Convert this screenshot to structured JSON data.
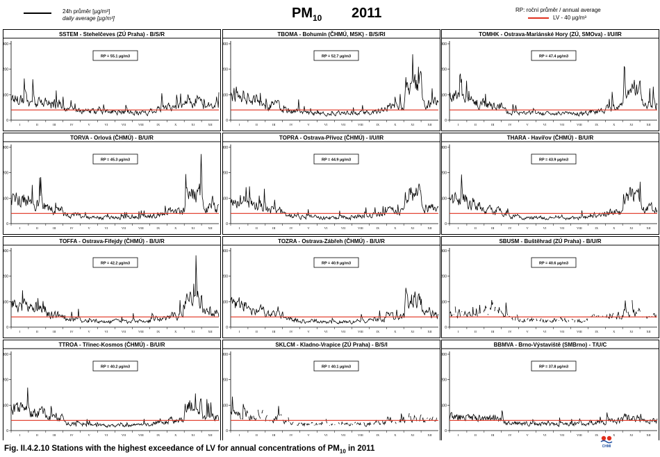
{
  "header": {
    "legend_daily_line1": "24h průměr [µg/m³]",
    "legend_daily_line2": "daily average [µg/m³]",
    "title_main": "PM",
    "title_sub": "10",
    "year": "2011",
    "legend_annual": "RP: roční průměr / annual average",
    "legend_lv": "LV - 40 µg/m³"
  },
  "caption": {
    "text_before": "Fig. II.4.2.10  Stations with the highest exceedance of LV for annual concentrations of PM",
    "sub": "10",
    "text_after": " in 2011"
  },
  "logo_text": "CHMI",
  "colors": {
    "daily_line": "#000000",
    "limit_line": "#e0301e",
    "frame": "#000000"
  },
  "month_labels": [
    "I",
    "II",
    "III",
    "IV",
    "V",
    "VI",
    "VII",
    "VIII",
    "IX",
    "X",
    "XI",
    "XII"
  ],
  "chart_data": [
    {
      "type": "line",
      "title": "SSTEM - Stehelčeves (ZÚ Praha) - B/S/R",
      "annual_label": "RP = 55.1 µg/m3",
      "y_ticks": [
        0,
        100,
        200,
        300
      ],
      "ylim": [
        0,
        300
      ],
      "limit_value": 40,
      "series": [
        {
          "monthly": [
            95,
            75,
            70,
            42,
            38,
            36,
            35,
            32,
            48,
            58,
            85,
            60
          ]
        }
      ]
    },
    {
      "type": "line",
      "title": "TBOMA - Bohumín (ČHMÚ, MSK) - B/S/RI",
      "annual_label": "RP = 52.7 µg/m3",
      "y_ticks": [
        0,
        100,
        200,
        300
      ],
      "ylim": [
        0,
        300
      ],
      "limit_value": 40,
      "series": [
        {
          "monthly": [
            110,
            85,
            65,
            40,
            30,
            28,
            30,
            32,
            42,
            60,
            155,
            75
          ]
        }
      ]
    },
    {
      "type": "line",
      "title": "TOMHK - Ostrava-Mariánské Hory (ZÚ, SMOva) - I/U/IR",
      "annual_label": "RP = 47.4 µg/m3",
      "y_ticks": [
        0,
        100,
        200,
        300
      ],
      "ylim": [
        0,
        300
      ],
      "limit_value": 40,
      "series": [
        {
          "monthly": [
            100,
            80,
            62,
            38,
            30,
            27,
            28,
            30,
            40,
            55,
            130,
            70
          ]
        }
      ]
    },
    {
      "type": "line",
      "title": "TORVA - Orlová (ČHMÚ) - B/U/R",
      "annual_label": "RP = 45.3 µg/m3",
      "y_ticks": [
        0,
        100,
        200,
        300
      ],
      "ylim": [
        0,
        300
      ],
      "limit_value": 40,
      "series": [
        {
          "monthly": [
            105,
            80,
            60,
            36,
            28,
            25,
            26,
            28,
            38,
            52,
            130,
            68
          ]
        }
      ]
    },
    {
      "type": "line",
      "title": "TOPRA - Ostrava-Přívoz (ČHMÚ) - I/U/IR",
      "annual_label": "RP = 44.9 µg/m3",
      "y_ticks": [
        0,
        100,
        200,
        300
      ],
      "ylim": [
        0,
        300
      ],
      "limit_value": 40,
      "series": [
        {
          "monthly": [
            100,
            78,
            58,
            36,
            28,
            26,
            27,
            30,
            40,
            52,
            125,
            66
          ]
        }
      ]
    },
    {
      "type": "line",
      "title": "THARA - Havířov (ČHMÚ) - B/U/R",
      "annual_label": "RP = 43.9 µg/m3",
      "y_ticks": [
        0,
        100,
        200,
        300
      ],
      "ylim": [
        0,
        300
      ],
      "limit_value": 40,
      "series": [
        {
          "monthly": [
            105,
            76,
            56,
            34,
            26,
            24,
            25,
            27,
            36,
            50,
            120,
            64
          ]
        }
      ]
    },
    {
      "type": "line",
      "title": "TOFFA - Ostrava-Fifejdy (ČHMÚ) - B/U/R",
      "annual_label": "RP = 42.2 µg/m3",
      "y_ticks": [
        0,
        100,
        200,
        300
      ],
      "ylim": [
        0,
        300
      ],
      "limit_value": 40,
      "series": [
        {
          "monthly": [
            95,
            75,
            55,
            33,
            26,
            24,
            24,
            26,
            36,
            48,
            125,
            62
          ]
        }
      ]
    },
    {
      "type": "line",
      "title": "TOZRA - Ostrava-Zábřeh (ČHMÚ) - B/U/R",
      "annual_label": "RP = 40.9 µg/m3",
      "y_ticks": [
        0,
        100,
        200,
        300
      ],
      "ylim": [
        0,
        300
      ],
      "limit_value": 40,
      "series": [
        {
          "monthly": [
            95,
            72,
            52,
            32,
            25,
            23,
            23,
            25,
            34,
            46,
            120,
            60
          ]
        }
      ]
    },
    {
      "type": "line",
      "title": "SBUSM - Buštěhrad (ZÚ Praha) - B/U/R",
      "annual_label": "RP = 40.6 µg/m3",
      "y_ticks": [
        0,
        100,
        200,
        300
      ],
      "ylim": [
        0,
        300
      ],
      "limit_value": 40,
      "series": [
        {
          "monthly": [
            60,
            55,
            80,
            40,
            30,
            28,
            30,
            28,
            42,
            50,
            60,
            45
          ]
        }
      ]
    },
    {
      "type": "line",
      "title": "TTROA - Třinec-Kosmos (ČHMÚ) - B/U/R",
      "annual_label": "RP = 40.2 µg/m3",
      "y_ticks": [
        0,
        100,
        200,
        300
      ],
      "ylim": [
        0,
        300
      ],
      "limit_value": 40,
      "series": [
        {
          "monthly": [
            90,
            75,
            55,
            30,
            24,
            22,
            22,
            24,
            33,
            45,
            110,
            58
          ]
        }
      ]
    },
    {
      "type": "line",
      "title": "SKLCM - Kladno-Vrapice (ZÚ Praha) - B/S/I",
      "annual_label": "RP = 40.1 µg/m3",
      "y_ticks": [
        0,
        100,
        200,
        300
      ],
      "ylim": [
        0,
        300
      ],
      "limit_value": 40,
      "series": [
        {
          "monthly": [
            65,
            70,
            55,
            34,
            28,
            26,
            27,
            28,
            38,
            46,
            52,
            45
          ]
        }
      ]
    },
    {
      "type": "line",
      "title": "BBMVA - Brno-Výstaviště (SMBrno) - T/U/C",
      "annual_label": "RP = 37.8 µg/m3",
      "y_ticks": [
        0,
        100,
        200,
        300
      ],
      "ylim": [
        0,
        300
      ],
      "limit_value": 40,
      "series": [
        {
          "monthly": [
            60,
            55,
            50,
            35,
            30,
            28,
            28,
            28,
            36,
            42,
            55,
            42
          ]
        }
      ]
    }
  ]
}
